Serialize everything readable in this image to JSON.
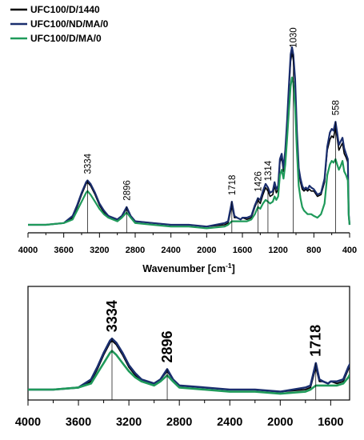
{
  "chart_data": [
    {
      "type": "line",
      "title": "",
      "xlabel": "Wavenumber [cm",
      "xlabel_sup": "-1",
      "xlabel_tail": "]",
      "ylabel": "",
      "xlim": [
        4000,
        400
      ],
      "x_reversed": true,
      "x_ticks": [
        "4000",
        "3600",
        "3200",
        "2800",
        "2400",
        "2000",
        "1600",
        "1200",
        "800",
        "400"
      ],
      "legend_position": "top-left",
      "legend": [
        "UFC100/D/1440",
        "UFC100/ND/MA/0",
        "UFC100/D/MA/0"
      ],
      "peak_labels": [
        "3334",
        "2896",
        "1718",
        "1426",
        "1314",
        "1030",
        "558"
      ],
      "series": [
        {
          "name": "UFC100/D/1440",
          "color": "#000000",
          "x": [
            4000,
            3800,
            3600,
            3500,
            3450,
            3400,
            3350,
            3334,
            3300,
            3250,
            3200,
            3150,
            3100,
            3000,
            2950,
            2896,
            2850,
            2800,
            2600,
            2400,
            2200,
            2000,
            1800,
            1760,
            1718,
            1690,
            1660,
            1620,
            1600,
            1550,
            1500,
            1460,
            1426,
            1400,
            1370,
            1340,
            1314,
            1290,
            1260,
            1240,
            1220,
            1200,
            1180,
            1160,
            1140,
            1120,
            1100,
            1080,
            1060,
            1045,
            1030,
            1010,
            990,
            970,
            950,
            930,
            910,
            890,
            870,
            850,
            830,
            800,
            760,
            720,
            680,
            650,
            620,
            600,
            580,
            558,
            540,
            520,
            500,
            480,
            460,
            440,
            420,
            410,
            400
          ],
          "y": [
            0.0,
            0.0,
            0.01,
            0.04,
            0.1,
            0.17,
            0.23,
            0.24,
            0.22,
            0.17,
            0.11,
            0.07,
            0.04,
            0.03,
            0.05,
            0.09,
            0.05,
            0.02,
            0.01,
            0.0,
            0.0,
            -0.01,
            0.0,
            0.01,
            0.11,
            0.04,
            0.04,
            0.03,
            0.04,
            0.03,
            0.04,
            0.1,
            0.14,
            0.12,
            0.17,
            0.21,
            0.19,
            0.16,
            0.17,
            0.22,
            0.18,
            0.2,
            0.35,
            0.38,
            0.3,
            0.4,
            0.55,
            0.75,
            0.92,
            0.97,
            0.93,
            0.78,
            0.5,
            0.3,
            0.24,
            0.2,
            0.19,
            0.2,
            0.19,
            0.2,
            0.19,
            0.19,
            0.16,
            0.17,
            0.24,
            0.42,
            0.48,
            0.5,
            0.49,
            0.55,
            0.49,
            0.42,
            0.44,
            0.46,
            0.4,
            0.38,
            0.35,
            0.05,
            0.0
          ]
        },
        {
          "name": "UFC100/ND/MA/0",
          "color": "#1a2e6e",
          "x": [
            4000,
            3800,
            3600,
            3500,
            3450,
            3400,
            3350,
            3334,
            3300,
            3250,
            3200,
            3150,
            3100,
            3000,
            2950,
            2896,
            2850,
            2800,
            2600,
            2400,
            2200,
            2000,
            1800,
            1760,
            1718,
            1690,
            1660,
            1620,
            1600,
            1550,
            1500,
            1460,
            1426,
            1400,
            1370,
            1340,
            1314,
            1290,
            1260,
            1240,
            1220,
            1200,
            1180,
            1160,
            1140,
            1120,
            1100,
            1080,
            1060,
            1045,
            1030,
            1010,
            990,
            970,
            950,
            930,
            910,
            890,
            870,
            850,
            830,
            800,
            760,
            720,
            680,
            650,
            620,
            600,
            580,
            558,
            540,
            520,
            500,
            480,
            460,
            440,
            420,
            410,
            400
          ],
          "y": [
            0.0,
            0.0,
            0.01,
            0.05,
            0.11,
            0.18,
            0.24,
            0.25,
            0.23,
            0.18,
            0.12,
            0.08,
            0.05,
            0.03,
            0.05,
            0.1,
            0.05,
            0.02,
            0.01,
            0.0,
            0.0,
            -0.01,
            0.01,
            0.02,
            0.13,
            0.05,
            0.04,
            0.03,
            0.04,
            0.04,
            0.05,
            0.11,
            0.15,
            0.14,
            0.19,
            0.23,
            0.21,
            0.18,
            0.19,
            0.24,
            0.2,
            0.22,
            0.37,
            0.4,
            0.32,
            0.42,
            0.58,
            0.78,
            0.96,
            1.0,
            0.96,
            0.82,
            0.53,
            0.32,
            0.26,
            0.22,
            0.2,
            0.21,
            0.2,
            0.22,
            0.21,
            0.2,
            0.17,
            0.18,
            0.26,
            0.44,
            0.52,
            0.54,
            0.53,
            0.58,
            0.52,
            0.45,
            0.47,
            0.49,
            0.43,
            0.4,
            0.37,
            0.06,
            0.0
          ]
        },
        {
          "name": "UFC100/D/MA/0",
          "color": "#1f9a5a",
          "x": [
            4000,
            3800,
            3600,
            3500,
            3450,
            3400,
            3350,
            3334,
            3300,
            3250,
            3200,
            3150,
            3100,
            3000,
            2950,
            2896,
            2850,
            2800,
            2600,
            2400,
            2200,
            2000,
            1800,
            1760,
            1718,
            1690,
            1660,
            1620,
            1600,
            1550,
            1500,
            1460,
            1426,
            1400,
            1370,
            1340,
            1314,
            1290,
            1260,
            1240,
            1220,
            1200,
            1180,
            1160,
            1140,
            1120,
            1100,
            1080,
            1060,
            1045,
            1030,
            1010,
            990,
            970,
            950,
            930,
            910,
            890,
            870,
            850,
            830,
            800,
            760,
            720,
            680,
            650,
            620,
            600,
            580,
            558,
            540,
            520,
            500,
            480,
            460,
            440,
            420,
            410,
            400
          ],
          "y": [
            0.0,
            0.0,
            0.01,
            0.03,
            0.08,
            0.13,
            0.18,
            0.19,
            0.17,
            0.13,
            0.09,
            0.06,
            0.04,
            0.02,
            0.04,
            0.07,
            0.04,
            0.01,
            0.0,
            -0.01,
            -0.01,
            -0.02,
            -0.01,
            0.0,
            0.02,
            0.02,
            0.02,
            0.02,
            0.02,
            0.02,
            0.03,
            0.06,
            0.1,
            0.09,
            0.12,
            0.14,
            0.13,
            0.12,
            0.13,
            0.16,
            0.14,
            0.16,
            0.28,
            0.31,
            0.26,
            0.34,
            0.48,
            0.64,
            0.78,
            0.83,
            0.8,
            0.66,
            0.42,
            0.22,
            0.15,
            0.1,
            0.08,
            0.07,
            0.06,
            0.06,
            0.06,
            0.05,
            0.04,
            0.06,
            0.12,
            0.28,
            0.34,
            0.36,
            0.35,
            0.37,
            0.34,
            0.31,
            0.33,
            0.36,
            0.3,
            0.28,
            0.25,
            0.05,
            0.0
          ]
        }
      ]
    },
    {
      "type": "line",
      "title": "",
      "xlabel": "",
      "ylabel": "",
      "xlim": [
        4000,
        1450
      ],
      "x_reversed": true,
      "x_ticks": [
        "4000",
        "3600",
        "3200",
        "2800",
        "2400",
        "2000",
        "1600"
      ],
      "peak_labels": [
        "3334",
        "2896",
        "1718"
      ],
      "series_ref": "same three series as above, zoomed to 4000-1450 cm-1"
    }
  ]
}
